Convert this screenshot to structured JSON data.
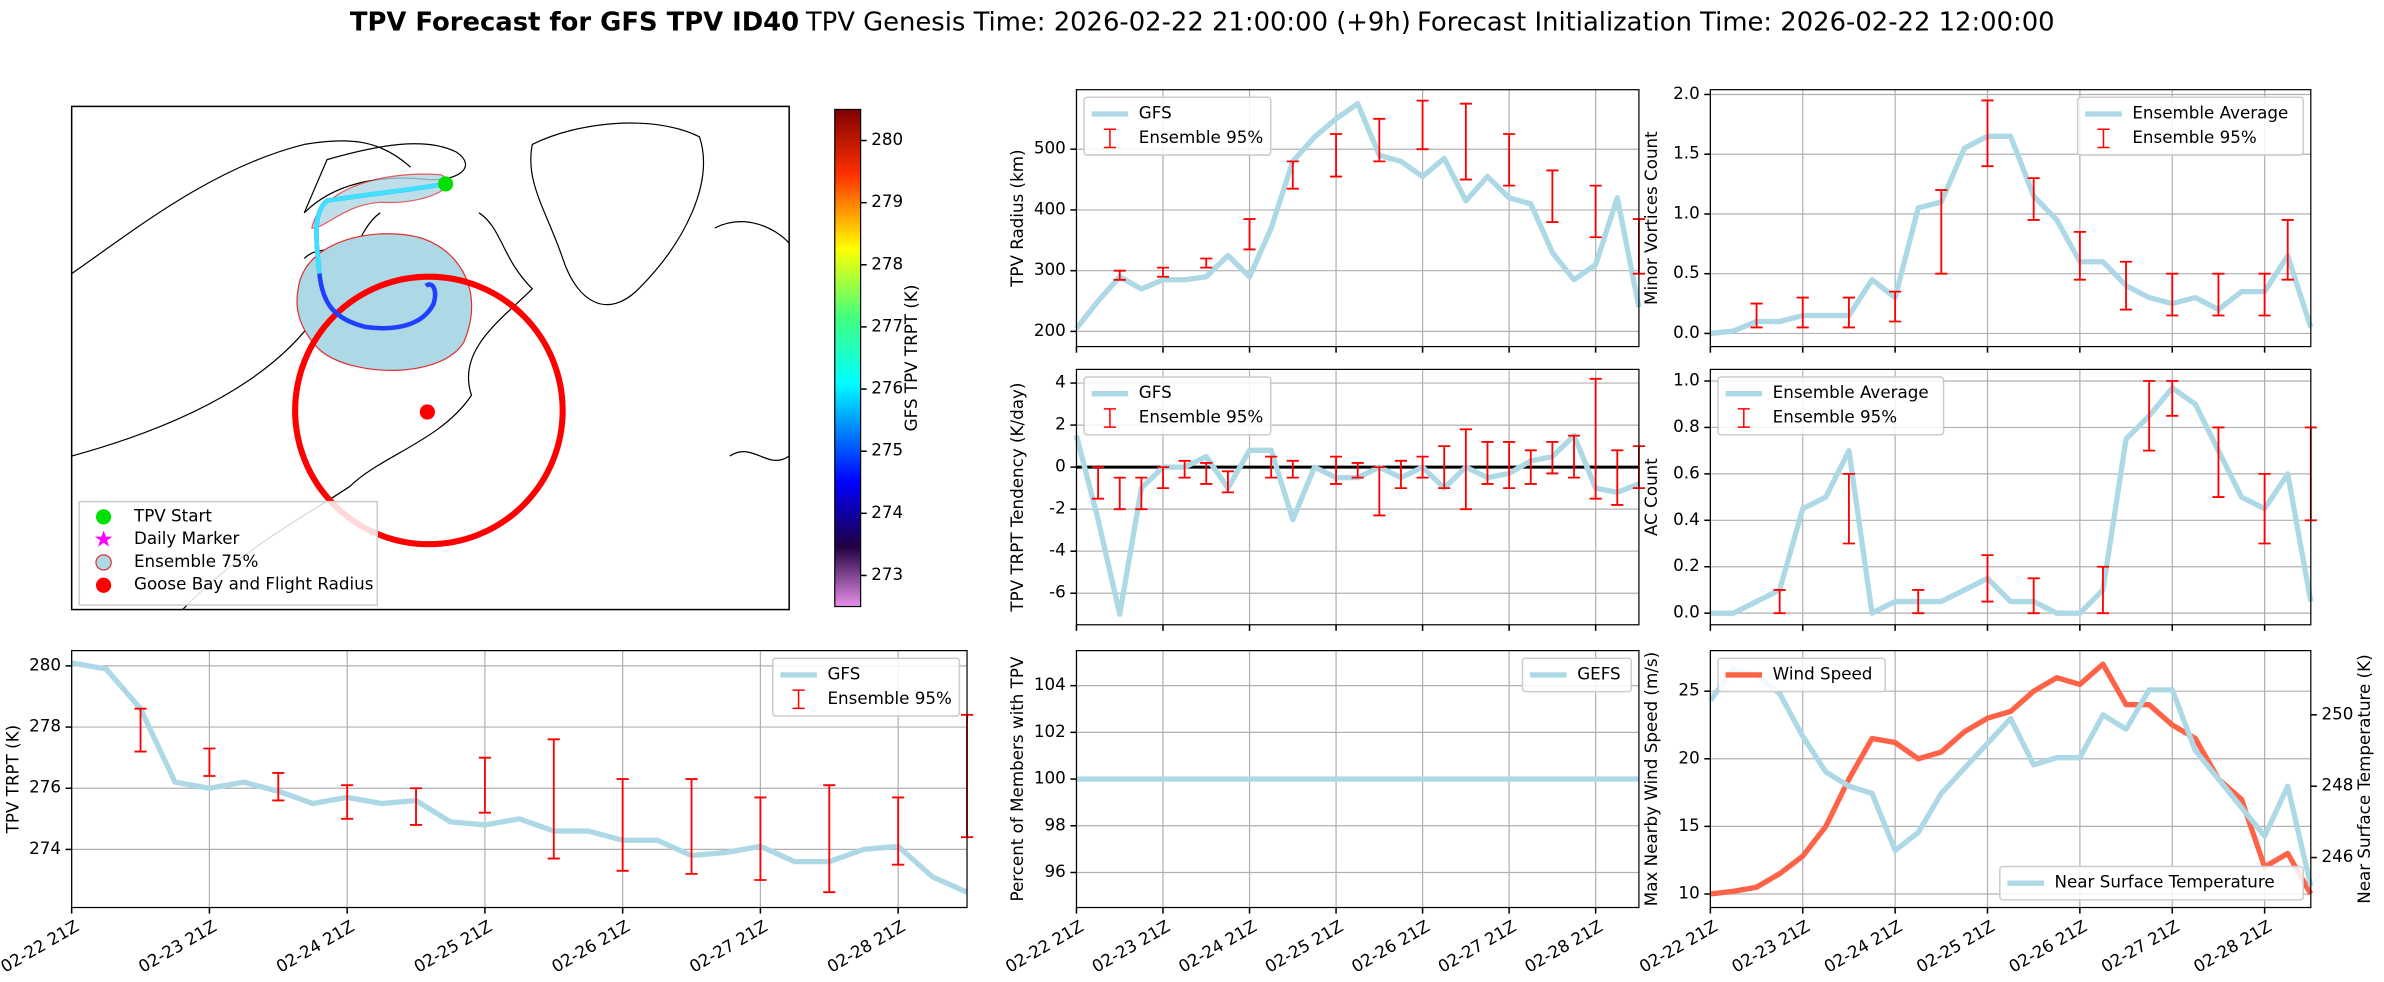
{
  "figure_title": {
    "main": "TPV Forecast for GFS TPV ID40",
    "genesis": "TPV Genesis Time: 2026-02-22 21:00:00 (+9h)",
    "init": "Forecast Initialization Time: 2026-02-22 12:00:00"
  },
  "chart_data": [
    {
      "type": "map",
      "legend": [
        "TPV Start",
        "Daily Marker",
        "Ensemble 75%",
        "Goose Bay and Flight Radius"
      ],
      "colorbar": {
        "label": "GFS TPV TRPT (K)",
        "lim": [
          272.5,
          280.5
        ],
        "ticks": [
          273,
          274,
          275,
          276,
          277,
          278,
          279,
          280
        ]
      }
    },
    {
      "type": "line",
      "ylabel": "TPV TRPT (K)",
      "ylim": [
        272.1,
        280.5
      ],
      "yticks": [
        274,
        276,
        278,
        280
      ],
      "legend": "upper right",
      "grid": true,
      "categories": [
        "02-22 21Z",
        null,
        null,
        null,
        "02-23 21Z",
        null,
        null,
        null,
        "02-24 21Z",
        null,
        null,
        null,
        "02-25 21Z",
        null,
        null,
        null,
        "02-26 21Z",
        null,
        null,
        null,
        "02-27 21Z",
        null,
        null,
        null,
        "02-28 21Z",
        null,
        null
      ],
      "series": [
        {
          "name": "GFS",
          "color": "#add8e6",
          "values": [
            280.1,
            279.9,
            278.6,
            276.2,
            276.0,
            276.2,
            275.9,
            275.5,
            275.7,
            275.5,
            275.6,
            274.9,
            274.8,
            275.0,
            274.6,
            274.6,
            274.3,
            274.3,
            273.8,
            273.9,
            274.1,
            273.6,
            273.6,
            274.0,
            274.1,
            273.1,
            272.6
          ]
        },
        {
          "name": "Ensemble 95%",
          "type": "errorbar",
          "color": "#ff0000",
          "low": [
            null,
            null,
            277.2,
            null,
            276.4,
            null,
            275.6,
            null,
            275.0,
            null,
            274.8,
            null,
            275.2,
            null,
            273.7,
            null,
            273.3,
            null,
            273.2,
            null,
            273.0,
            null,
            272.6,
            null,
            273.5,
            null,
            274.4
          ],
          "high": [
            null,
            null,
            278.6,
            null,
            277.3,
            null,
            276.5,
            null,
            276.1,
            null,
            276.0,
            null,
            277.0,
            null,
            277.6,
            null,
            276.3,
            null,
            276.3,
            null,
            275.7,
            null,
            276.1,
            null,
            275.7,
            null,
            278.4
          ]
        }
      ]
    },
    {
      "type": "line",
      "ylabel": "TPV Radius (km)",
      "ylim": [
        175,
        598
      ],
      "yticks": [
        200,
        300,
        400,
        500
      ],
      "legend": "upper left",
      "grid": true,
      "series": [
        {
          "name": "GFS",
          "color": "#add8e6",
          "values": [
            205,
            250,
            290,
            270,
            285,
            285,
            290,
            325,
            290,
            370,
            480,
            520,
            550,
            575,
            490,
            480,
            455,
            485,
            415,
            455,
            420,
            410,
            330,
            285,
            310,
            420,
            240
          ]
        },
        {
          "name": "Ensemble 95%",
          "type": "errorbar",
          "color": "#ff0000",
          "low": [
            null,
            null,
            285,
            null,
            290,
            null,
            305,
            null,
            335,
            null,
            435,
            null,
            455,
            null,
            480,
            null,
            500,
            null,
            450,
            null,
            440,
            null,
            380,
            null,
            355,
            null,
            295
          ],
          "high": [
            null,
            null,
            300,
            null,
            305,
            null,
            320,
            null,
            385,
            null,
            480,
            null,
            525,
            null,
            550,
            null,
            580,
            null,
            575,
            null,
            525,
            null,
            465,
            null,
            440,
            null,
            385
          ]
        }
      ]
    },
    {
      "type": "line",
      "ylabel": "TPV TRPT Tendency (K/day)",
      "ylim": [
        -7.5,
        4.65
      ],
      "yticks": [
        -6,
        -4,
        -2,
        0,
        2,
        4
      ],
      "legend": "upper left",
      "grid": true,
      "hline": 0,
      "series": [
        {
          "name": "GFS",
          "color": "#add8e6",
          "values": [
            1.5,
            -2.5,
            -7,
            -1,
            0,
            0,
            0.5,
            -1,
            0.8,
            0.8,
            -2.5,
            0,
            -0.5,
            -0.5,
            0,
            -0.5,
            0,
            -1,
            0,
            -0.5,
            -0.3,
            0.3,
            0.5,
            1.5,
            -1,
            -1.2,
            -0.8
          ]
        },
        {
          "name": "Ensemble 95%",
          "type": "errorbar",
          "color": "#ff0000",
          "low": [
            null,
            -1.5,
            -2,
            -2,
            -1,
            -0.5,
            -0.8,
            -1.2,
            null,
            -0.5,
            -0.5,
            null,
            -0.8,
            -0.5,
            -2.3,
            -1,
            -0.5,
            -1,
            -2,
            -0.8,
            -1,
            -0.8,
            -0.3,
            -0.5,
            -1.5,
            -1.8,
            -1
          ],
          "high": [
            null,
            0,
            -0.5,
            -0.5,
            0,
            0.3,
            0.2,
            -0.2,
            null,
            0.5,
            0.3,
            null,
            0.5,
            0.2,
            0,
            0.3,
            0.5,
            1,
            1.8,
            1.2,
            1.2,
            0.8,
            1.2,
            1.5,
            4.2,
            0.8,
            1
          ]
        }
      ]
    },
    {
      "type": "line",
      "ylabel": "Percent of Members with TPV",
      "ylim": [
        94.5,
        105.5
      ],
      "yticks": [
        96,
        98,
        100,
        102,
        104
      ],
      "legend": "upper right",
      "grid": true,
      "categories": [
        "02-22 21Z",
        null,
        null,
        null,
        "02-23 21Z",
        null,
        null,
        null,
        "02-24 21Z",
        null,
        null,
        null,
        "02-25 21Z",
        null,
        null,
        null,
        "02-26 21Z",
        null,
        null,
        null,
        "02-27 21Z",
        null,
        null,
        null,
        "02-28 21Z",
        null,
        null
      ],
      "series": [
        {
          "name": "GEFS",
          "color": "#add8e6",
          "values": [
            100,
            100,
            100,
            100,
            100,
            100,
            100,
            100,
            100,
            100,
            100,
            100,
            100,
            100,
            100,
            100,
            100,
            100,
            100,
            100,
            100,
            100,
            100,
            100,
            100,
            100,
            100
          ]
        }
      ]
    },
    {
      "type": "line",
      "ylabel": "Minor Vortices Count",
      "ylim": [
        -0.11,
        2.04
      ],
      "yticks": [
        {
          "value": 0,
          "label": "0.0"
        },
        0.5,
        {
          "value": 1,
          "label": "1.0"
        },
        1.5,
        {
          "value": 2,
          "label": "2.0"
        }
      ],
      "legend": "upper right",
      "grid": true,
      "series": [
        {
          "name": "Ensemble Average",
          "color": "#add8e6",
          "values": [
            0,
            0.02,
            0.1,
            0.1,
            0.15,
            0.15,
            0.15,
            0.45,
            0.3,
            1.05,
            1.1,
            1.55,
            1.65,
            1.65,
            1.15,
            0.95,
            0.6,
            0.6,
            0.4,
            0.3,
            0.25,
            0.3,
            0.2,
            0.35,
            0.35,
            0.65,
            0.05
          ]
        },
        {
          "name": "Ensemble 95%",
          "type": "errorbar",
          "color": "#ff0000",
          "low": [
            null,
            null,
            0.05,
            null,
            0.05,
            null,
            0.05,
            null,
            0.1,
            null,
            0.5,
            null,
            1.4,
            null,
            0.95,
            null,
            0.45,
            null,
            0.2,
            null,
            0.15,
            null,
            0.15,
            null,
            0.15,
            0.45,
            null
          ],
          "high": [
            null,
            null,
            0.25,
            null,
            0.3,
            null,
            0.3,
            null,
            0.35,
            null,
            1.2,
            null,
            1.95,
            null,
            1.3,
            null,
            0.85,
            null,
            0.6,
            null,
            0.5,
            null,
            0.5,
            null,
            0.5,
            0.95,
            null
          ]
        }
      ]
    },
    {
      "type": "line",
      "ylabel": "AC Count",
      "ylim": [
        -0.05,
        1.05
      ],
      "yticks": [
        {
          "value": 0,
          "label": "0.0"
        },
        0.2,
        0.4,
        0.6,
        0.8,
        {
          "value": 1,
          "label": "1.0"
        }
      ],
      "legend": "upper left",
      "grid": true,
      "series": [
        {
          "name": "Ensemble Average",
          "color": "#add8e6",
          "values": [
            0,
            0,
            0.05,
            0.1,
            0.45,
            0.5,
            0.7,
            0,
            0.05,
            0.05,
            0.05,
            0.1,
            0.15,
            0.05,
            0.05,
            0,
            0,
            0.1,
            0.75,
            0.85,
            0.97,
            0.9,
            0.7,
            0.5,
            0.45,
            0.6,
            0.05
          ]
        },
        {
          "name": "Ensemble 95%",
          "type": "errorbar",
          "color": "#ff0000",
          "low": [
            null,
            null,
            null,
            0,
            null,
            null,
            0.3,
            null,
            null,
            0,
            null,
            null,
            0.05,
            null,
            0,
            null,
            null,
            0,
            null,
            0.7,
            0.85,
            null,
            0.5,
            null,
            0.3,
            null,
            0.4
          ],
          "high": [
            null,
            null,
            null,
            0.1,
            null,
            null,
            0.6,
            null,
            null,
            0.1,
            null,
            null,
            0.25,
            null,
            0.15,
            null,
            null,
            0.2,
            null,
            1.0,
            1.0,
            null,
            0.8,
            null,
            0.6,
            null,
            0.8
          ]
        }
      ]
    },
    {
      "type": "line",
      "ylabel": "Max Nearby Wind Speed (m/s)",
      "ylabel_color": "#ff6347",
      "ylim": [
        9,
        28
      ],
      "yticks": [
        10,
        15,
        20,
        25
      ],
      "y2label": "Near Surface Temperature (K)",
      "y2label_color": "#4169e1",
      "y2lim": [
        244.6,
        251.8
      ],
      "y2ticks": [
        246,
        248,
        250
      ],
      "grid": true,
      "categories": [
        "02-22 21Z",
        null,
        null,
        null,
        "02-23 21Z",
        null,
        null,
        null,
        "02-24 21Z",
        null,
        null,
        null,
        "02-25 21Z",
        null,
        null,
        null,
        "02-26 21Z",
        null,
        null,
        null,
        "02-27 21Z",
        null,
        null,
        null,
        "02-28 21Z",
        null,
        null
      ],
      "series": [
        {
          "name": "Wind Speed",
          "color": "#ff6347",
          "legend": "upper left",
          "values": [
            10,
            10.2,
            10.5,
            11.5,
            12.8,
            15,
            18.5,
            21.5,
            21.2,
            20,
            20.5,
            22,
            23,
            23.5,
            25,
            26,
            25.5,
            27,
            24,
            24,
            22.5,
            21.5,
            18.5,
            17,
            12,
            13,
            10
          ]
        },
        {
          "name": "Near Surface Temperature",
          "color": "#add8e6",
          "axis": "y2",
          "legend": "lower right",
          "values": [
            250.4,
            251.3,
            251.1,
            250.6,
            249.4,
            248.4,
            248.0,
            247.8,
            246.2,
            246.7,
            247.8,
            248.5,
            249.2,
            249.9,
            248.6,
            248.8,
            248.8,
            250.0,
            249.6,
            250.7,
            250.7,
            249.0,
            248.2,
            247.4,
            246.6,
            248.0,
            245.2
          ]
        }
      ]
    }
  ]
}
